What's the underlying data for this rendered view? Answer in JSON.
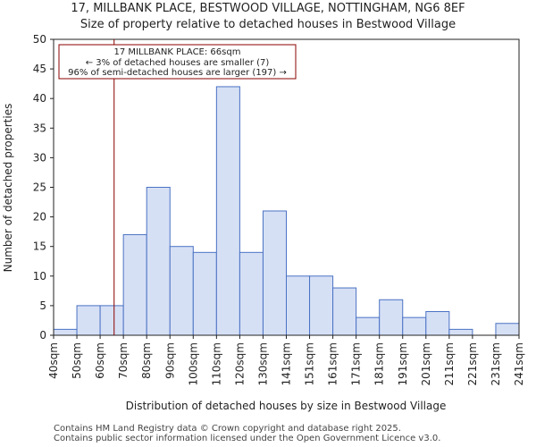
{
  "chart_data": {
    "type": "bar",
    "title": "17, MILLBANK PLACE, BESTWOOD VILLAGE, NOTTINGHAM, NG6 8EF",
    "subtitle": "Size of property relative to detached houses in Bestwood Village",
    "xlabel": "Distribution of detached houses by size in Bestwood Village",
    "ylabel": "Number of detached properties",
    "ylim": [
      0,
      50
    ],
    "yticks": [
      0,
      5,
      10,
      15,
      20,
      25,
      30,
      35,
      40,
      45,
      50
    ],
    "bin_edges": [
      "40sqm",
      "50sqm",
      "60sqm",
      "70sqm",
      "80sqm",
      "90sqm",
      "100sqm",
      "110sqm",
      "120sqm",
      "130sqm",
      "141sqm",
      "151sqm",
      "161sqm",
      "171sqm",
      "181sqm",
      "191sqm",
      "201sqm",
      "211sqm",
      "221sqm",
      "231sqm",
      "241sqm"
    ],
    "values": [
      1,
      5,
      5,
      17,
      25,
      15,
      14,
      42,
      14,
      21,
      10,
      10,
      8,
      3,
      6,
      3,
      4,
      1,
      0,
      2
    ],
    "bar_color": "#d6e0f5",
    "bar_edge_color": "#4a72c4",
    "marker": {
      "value_sqm": 66,
      "bin_position": 2.6,
      "color": "#8b0000"
    },
    "annotation": {
      "lines": [
        "17 MILLBANK PLACE: 66sqm",
        "← 3% of detached houses are smaller (7)",
        "96% of semi-detached houses are larger (197) →"
      ],
      "border_color": "#8b0000"
    }
  },
  "footer": {
    "line1": "Contains HM Land Registry data © Crown copyright and database right 2025.",
    "line2": "Contains public sector information licensed under the Open Government Licence v3.0."
  }
}
